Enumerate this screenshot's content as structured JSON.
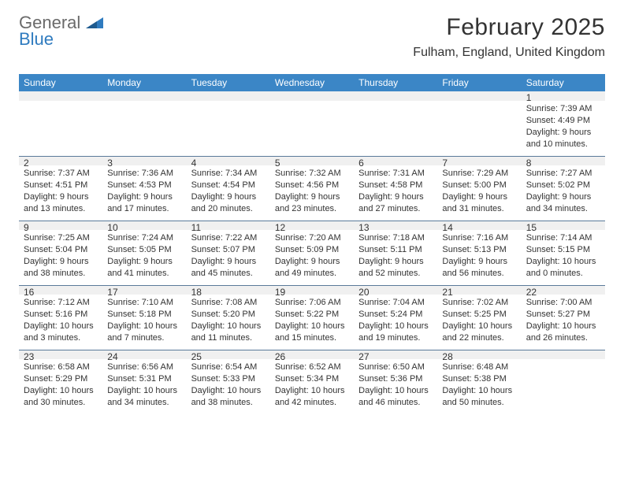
{
  "logo": {
    "general": "General",
    "blue": "Blue"
  },
  "title": "February 2025",
  "location": "Fulham, England, United Kingdom",
  "weekdays": [
    "Sunday",
    "Monday",
    "Tuesday",
    "Wednesday",
    "Thursday",
    "Friday",
    "Saturday"
  ],
  "colors": {
    "header_bg": "#3b86c6",
    "row_divider": "#5a7a9a",
    "band_bg": "#f0f0f0",
    "text": "#333333",
    "logo_gray": "#6a6a6a",
    "logo_blue": "#2f7bbf"
  },
  "weeks": [
    [
      null,
      null,
      null,
      null,
      null,
      null,
      {
        "n": "1",
        "sunrise": "Sunrise: 7:39 AM",
        "sunset": "Sunset: 4:49 PM",
        "dl1": "Daylight: 9 hours",
        "dl2": "and 10 minutes."
      }
    ],
    [
      {
        "n": "2",
        "sunrise": "Sunrise: 7:37 AM",
        "sunset": "Sunset: 4:51 PM",
        "dl1": "Daylight: 9 hours",
        "dl2": "and 13 minutes."
      },
      {
        "n": "3",
        "sunrise": "Sunrise: 7:36 AM",
        "sunset": "Sunset: 4:53 PM",
        "dl1": "Daylight: 9 hours",
        "dl2": "and 17 minutes."
      },
      {
        "n": "4",
        "sunrise": "Sunrise: 7:34 AM",
        "sunset": "Sunset: 4:54 PM",
        "dl1": "Daylight: 9 hours",
        "dl2": "and 20 minutes."
      },
      {
        "n": "5",
        "sunrise": "Sunrise: 7:32 AM",
        "sunset": "Sunset: 4:56 PM",
        "dl1": "Daylight: 9 hours",
        "dl2": "and 23 minutes."
      },
      {
        "n": "6",
        "sunrise": "Sunrise: 7:31 AM",
        "sunset": "Sunset: 4:58 PM",
        "dl1": "Daylight: 9 hours",
        "dl2": "and 27 minutes."
      },
      {
        "n": "7",
        "sunrise": "Sunrise: 7:29 AM",
        "sunset": "Sunset: 5:00 PM",
        "dl1": "Daylight: 9 hours",
        "dl2": "and 31 minutes."
      },
      {
        "n": "8",
        "sunrise": "Sunrise: 7:27 AM",
        "sunset": "Sunset: 5:02 PM",
        "dl1": "Daylight: 9 hours",
        "dl2": "and 34 minutes."
      }
    ],
    [
      {
        "n": "9",
        "sunrise": "Sunrise: 7:25 AM",
        "sunset": "Sunset: 5:04 PM",
        "dl1": "Daylight: 9 hours",
        "dl2": "and 38 minutes."
      },
      {
        "n": "10",
        "sunrise": "Sunrise: 7:24 AM",
        "sunset": "Sunset: 5:05 PM",
        "dl1": "Daylight: 9 hours",
        "dl2": "and 41 minutes."
      },
      {
        "n": "11",
        "sunrise": "Sunrise: 7:22 AM",
        "sunset": "Sunset: 5:07 PM",
        "dl1": "Daylight: 9 hours",
        "dl2": "and 45 minutes."
      },
      {
        "n": "12",
        "sunrise": "Sunrise: 7:20 AM",
        "sunset": "Sunset: 5:09 PM",
        "dl1": "Daylight: 9 hours",
        "dl2": "and 49 minutes."
      },
      {
        "n": "13",
        "sunrise": "Sunrise: 7:18 AM",
        "sunset": "Sunset: 5:11 PM",
        "dl1": "Daylight: 9 hours",
        "dl2": "and 52 minutes."
      },
      {
        "n": "14",
        "sunrise": "Sunrise: 7:16 AM",
        "sunset": "Sunset: 5:13 PM",
        "dl1": "Daylight: 9 hours",
        "dl2": "and 56 minutes."
      },
      {
        "n": "15",
        "sunrise": "Sunrise: 7:14 AM",
        "sunset": "Sunset: 5:15 PM",
        "dl1": "Daylight: 10 hours",
        "dl2": "and 0 minutes."
      }
    ],
    [
      {
        "n": "16",
        "sunrise": "Sunrise: 7:12 AM",
        "sunset": "Sunset: 5:16 PM",
        "dl1": "Daylight: 10 hours",
        "dl2": "and 3 minutes."
      },
      {
        "n": "17",
        "sunrise": "Sunrise: 7:10 AM",
        "sunset": "Sunset: 5:18 PM",
        "dl1": "Daylight: 10 hours",
        "dl2": "and 7 minutes."
      },
      {
        "n": "18",
        "sunrise": "Sunrise: 7:08 AM",
        "sunset": "Sunset: 5:20 PM",
        "dl1": "Daylight: 10 hours",
        "dl2": "and 11 minutes."
      },
      {
        "n": "19",
        "sunrise": "Sunrise: 7:06 AM",
        "sunset": "Sunset: 5:22 PM",
        "dl1": "Daylight: 10 hours",
        "dl2": "and 15 minutes."
      },
      {
        "n": "20",
        "sunrise": "Sunrise: 7:04 AM",
        "sunset": "Sunset: 5:24 PM",
        "dl1": "Daylight: 10 hours",
        "dl2": "and 19 minutes."
      },
      {
        "n": "21",
        "sunrise": "Sunrise: 7:02 AM",
        "sunset": "Sunset: 5:25 PM",
        "dl1": "Daylight: 10 hours",
        "dl2": "and 22 minutes."
      },
      {
        "n": "22",
        "sunrise": "Sunrise: 7:00 AM",
        "sunset": "Sunset: 5:27 PM",
        "dl1": "Daylight: 10 hours",
        "dl2": "and 26 minutes."
      }
    ],
    [
      {
        "n": "23",
        "sunrise": "Sunrise: 6:58 AM",
        "sunset": "Sunset: 5:29 PM",
        "dl1": "Daylight: 10 hours",
        "dl2": "and 30 minutes."
      },
      {
        "n": "24",
        "sunrise": "Sunrise: 6:56 AM",
        "sunset": "Sunset: 5:31 PM",
        "dl1": "Daylight: 10 hours",
        "dl2": "and 34 minutes."
      },
      {
        "n": "25",
        "sunrise": "Sunrise: 6:54 AM",
        "sunset": "Sunset: 5:33 PM",
        "dl1": "Daylight: 10 hours",
        "dl2": "and 38 minutes."
      },
      {
        "n": "26",
        "sunrise": "Sunrise: 6:52 AM",
        "sunset": "Sunset: 5:34 PM",
        "dl1": "Daylight: 10 hours",
        "dl2": "and 42 minutes."
      },
      {
        "n": "27",
        "sunrise": "Sunrise: 6:50 AM",
        "sunset": "Sunset: 5:36 PM",
        "dl1": "Daylight: 10 hours",
        "dl2": "and 46 minutes."
      },
      {
        "n": "28",
        "sunrise": "Sunrise: 6:48 AM",
        "sunset": "Sunset: 5:38 PM",
        "dl1": "Daylight: 10 hours",
        "dl2": "and 50 minutes."
      },
      null
    ]
  ]
}
